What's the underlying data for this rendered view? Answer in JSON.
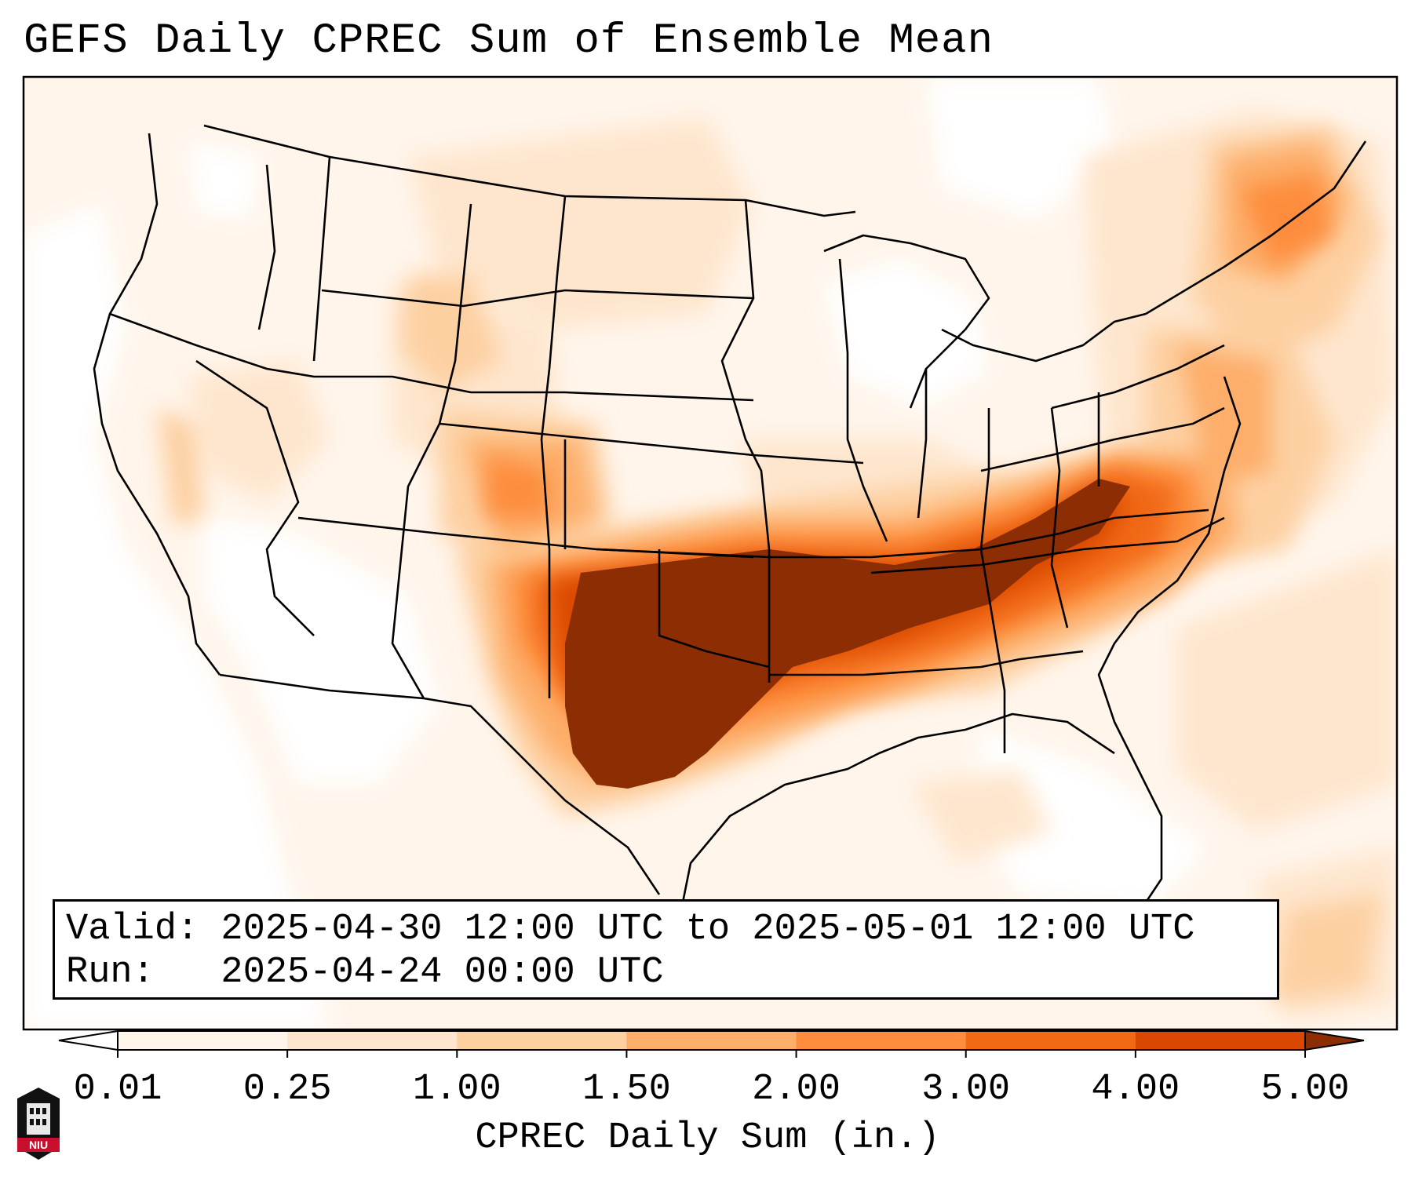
{
  "title": "GEFS Daily CPREC Sum of Ensemble Mean",
  "info": {
    "valid_line": "Valid: 2025-04-30 12:00 UTC to 2025-05-01 12:00 UTC",
    "run_line": "Run:   2025-04-24 00:00 UTC"
  },
  "colorbar": {
    "label": "CPREC Daily Sum (in.)",
    "ticks": [
      "0.01",
      "0.25",
      "1.00",
      "1.50",
      "2.00",
      "3.00",
      "4.00",
      "5.00"
    ],
    "colors": [
      "#fff5eb",
      "#fee6ce",
      "#fdd0a2",
      "#fdae6b",
      "#fd8d3c",
      "#f16913",
      "#d94801",
      "#8c2d04"
    ],
    "under_color": "#ffffff",
    "over_color": "#8c2d04"
  },
  "logo": {
    "text": "NIU",
    "color": "#c8102e"
  }
}
